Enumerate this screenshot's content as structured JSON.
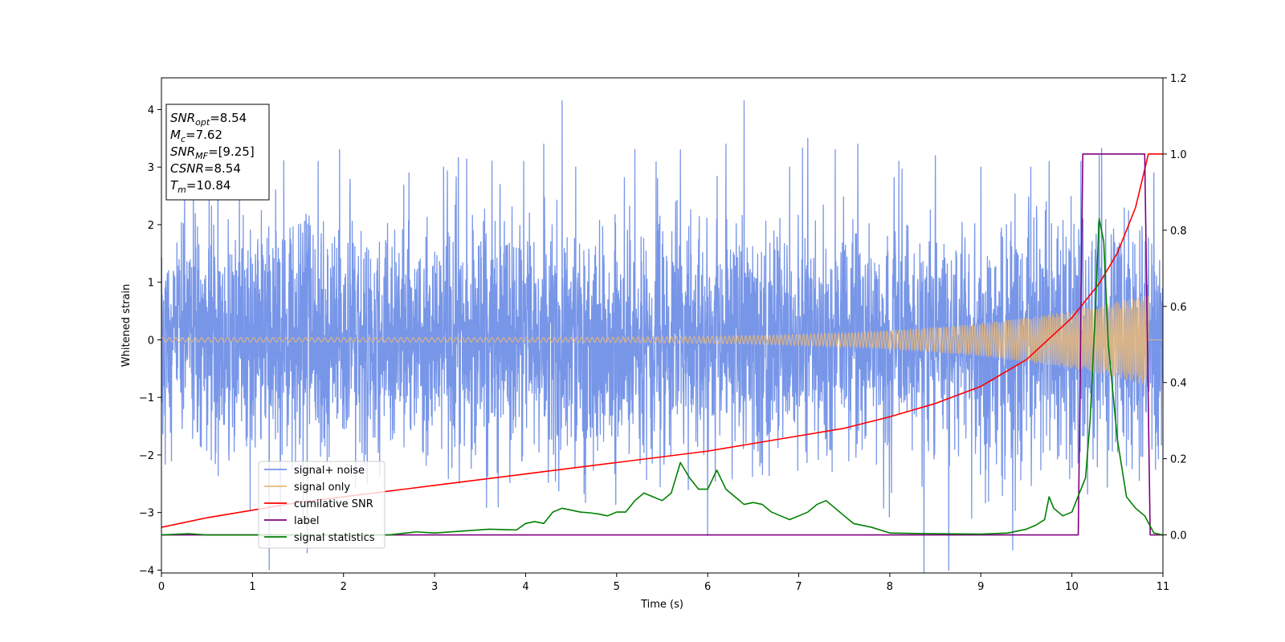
{
  "chart_data": {
    "type": "line",
    "xlabel": "Time (s)",
    "ylabel": "Whitened strain",
    "xlim": [
      0,
      11
    ],
    "ylim": [
      -4.05,
      4.55
    ],
    "y2lim": [
      -0.1,
      1.2
    ],
    "x_ticks": [
      0,
      1,
      2,
      3,
      4,
      5,
      6,
      7,
      8,
      9,
      10,
      11
    ],
    "y_ticks": [
      -4,
      -3,
      -2,
      -1,
      0,
      1,
      2,
      3,
      4
    ],
    "y2_ticks": [
      0.0,
      0.2,
      0.4,
      0.6,
      0.8,
      1.0,
      1.2
    ],
    "x_tick_labels": [
      "0",
      "1",
      "2",
      "3",
      "4",
      "5",
      "6",
      "7",
      "8",
      "9",
      "10",
      "11"
    ],
    "y_tick_labels": [
      "−4",
      "−3",
      "−2",
      "−1",
      "0",
      "1",
      "2",
      "3",
      "4"
    ],
    "y2_tick_labels": [
      "0.0",
      "0.2",
      "0.4",
      "0.6",
      "0.8",
      "1.0",
      "1.2"
    ],
    "grid": false,
    "legend_placement": "lower-left",
    "annotation_lines": [
      {
        "sym": "SNR",
        "sub": "opt",
        "val": "=8.54"
      },
      {
        "sym": "M",
        "sub": "c",
        "val": "=7.62"
      },
      {
        "sym": "SNR",
        "sub": "MF",
        "val": "=[9.25]"
      },
      {
        "sym": "CSNR",
        "sub": "",
        "val": "=8.54"
      },
      {
        "sym": "T",
        "sub": "m",
        "val": "=10.84"
      }
    ],
    "series": [
      {
        "name": "signal+ noise",
        "color": "#7896e8",
        "axis": "left",
        "kind": "noise",
        "noise_sigma": 1.0,
        "x_range": [
          0,
          11
        ],
        "peaks": [
          [
            0.35,
            2.8
          ],
          [
            0.62,
            2.9
          ],
          [
            1.6,
            -3.7
          ],
          [
            1.72,
            3.1
          ],
          [
            2.72,
            2.9
          ],
          [
            3.1,
            3.0
          ],
          [
            3.72,
            2.7
          ],
          [
            3.98,
            3.1
          ],
          [
            4.2,
            3.4
          ],
          [
            4.4,
            4.15
          ],
          [
            4.55,
            3.0
          ],
          [
            5.2,
            3.3
          ],
          [
            5.45,
            2.8
          ],
          [
            5.7,
            3.3
          ],
          [
            6.0,
            -3.4
          ],
          [
            6.2,
            3.4
          ],
          [
            6.4,
            4.15
          ],
          [
            6.9,
            3.0
          ],
          [
            7.1,
            3.5
          ],
          [
            7.4,
            3.3
          ],
          [
            7.65,
            3.4
          ],
          [
            8.1,
            3.1
          ],
          [
            8.5,
            3.2
          ],
          [
            8.9,
            -3.1
          ],
          [
            9.0,
            3.0
          ],
          [
            9.35,
            -3.65
          ],
          [
            9.55,
            3.0
          ],
          [
            9.75,
            3.1
          ],
          [
            10.1,
            3.1
          ],
          [
            10.3,
            3.2
          ],
          [
            10.9,
            2.9
          ]
        ]
      },
      {
        "name": "signal only",
        "color": "#e8b87a",
        "axis": "left",
        "kind": "chirp",
        "x_range": [
          0,
          10.84
        ],
        "amp_start": 0.04,
        "amp_end": 0.8
      },
      {
        "name": "cumilative SNR",
        "color": "#ff0000",
        "axis": "right",
        "x": [
          0,
          0.5,
          1,
          1.5,
          2,
          2.5,
          3,
          3.5,
          4,
          4.5,
          5,
          5.5,
          6,
          6.5,
          7,
          7.5,
          8,
          8.5,
          9,
          9.5,
          10,
          10.3,
          10.5,
          10.7,
          10.84,
          11
        ],
        "y": [
          0.02,
          0.045,
          0.065,
          0.085,
          0.1,
          0.115,
          0.13,
          0.145,
          0.16,
          0.175,
          0.19,
          0.205,
          0.22,
          0.24,
          0.26,
          0.28,
          0.31,
          0.345,
          0.39,
          0.46,
          0.57,
          0.66,
          0.74,
          0.86,
          1.0,
          1.0
        ]
      },
      {
        "name": "label",
        "color": "#800080",
        "axis": "right",
        "x": [
          0,
          10.07,
          10.12,
          10.8,
          10.86,
          11
        ],
        "y": [
          0.0,
          0.0,
          1.0,
          1.0,
          0.0,
          0.0
        ]
      },
      {
        "name": "signal statistics",
        "color": "#008000",
        "axis": "right",
        "x": [
          0,
          0.3,
          0.5,
          1.0,
          2.0,
          2.5,
          2.8,
          3.0,
          3.3,
          3.6,
          3.9,
          4.0,
          4.1,
          4.2,
          4.3,
          4.4,
          4.5,
          4.6,
          4.7,
          4.8,
          4.9,
          5.0,
          5.1,
          5.2,
          5.3,
          5.4,
          5.5,
          5.6,
          5.7,
          5.8,
          5.9,
          6.0,
          6.1,
          6.2,
          6.3,
          6.4,
          6.5,
          6.6,
          6.7,
          6.8,
          6.9,
          7.0,
          7.1,
          7.2,
          7.3,
          7.4,
          7.5,
          7.6,
          7.8,
          8.0,
          8.5,
          9.0,
          9.3,
          9.5,
          9.6,
          9.7,
          9.75,
          9.8,
          9.9,
          10.0,
          10.1,
          10.15,
          10.2,
          10.25,
          10.3,
          10.35,
          10.4,
          10.5,
          10.6,
          10.7,
          10.8,
          10.9,
          11.0
        ],
        "y": [
          0.0,
          0.003,
          0.0,
          0.0,
          0.0,
          0.0,
          0.008,
          0.005,
          0.01,
          0.015,
          0.013,
          0.03,
          0.035,
          0.03,
          0.06,
          0.07,
          0.065,
          0.06,
          0.058,
          0.055,
          0.05,
          0.06,
          0.06,
          0.09,
          0.11,
          0.1,
          0.09,
          0.11,
          0.19,
          0.15,
          0.12,
          0.12,
          0.17,
          0.12,
          0.1,
          0.08,
          0.085,
          0.08,
          0.06,
          0.05,
          0.04,
          0.05,
          0.06,
          0.08,
          0.09,
          0.07,
          0.05,
          0.03,
          0.02,
          0.005,
          0.003,
          0.002,
          0.005,
          0.015,
          0.025,
          0.04,
          0.1,
          0.07,
          0.05,
          0.06,
          0.12,
          0.15,
          0.3,
          0.55,
          0.83,
          0.77,
          0.5,
          0.25,
          0.1,
          0.07,
          0.05,
          0.005,
          0.0
        ]
      }
    ]
  }
}
